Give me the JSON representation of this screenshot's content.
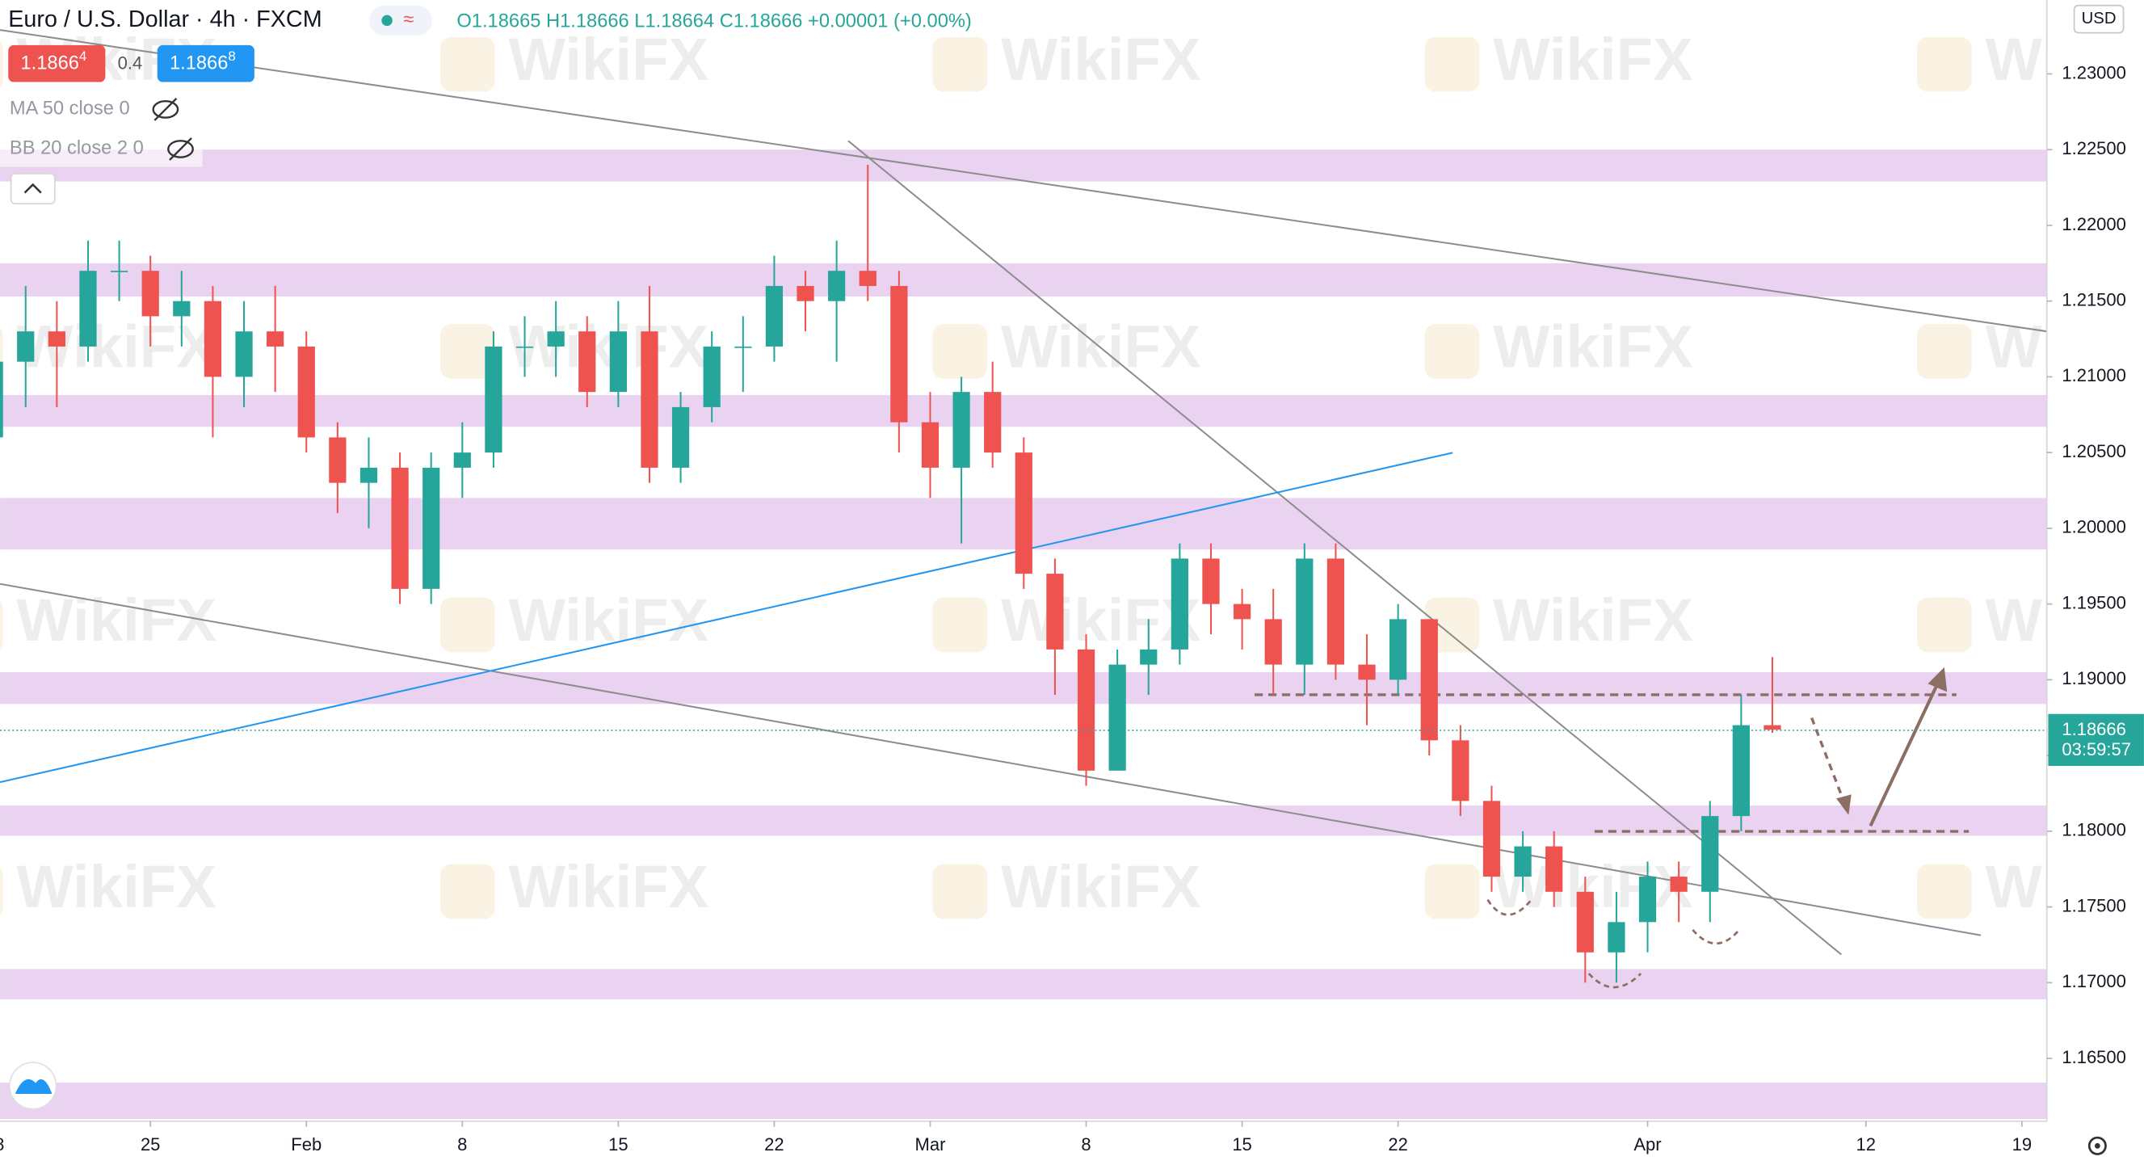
{
  "chart_data": {
    "type": "candlestick",
    "title": "Euro / U.S. Dollar · 4h · FXCM",
    "ohlc_text": "O1.18665 H1.18666 L1.18664 C1.18666 +0.00001 (+0.00%)",
    "bid_main": "1.1866",
    "bid_pip": "4",
    "spread": "0.4",
    "ask_main": "1.1866",
    "ask_pip": "8",
    "indicators": [
      "MA 50 close 0",
      "BB 20 close 2 0"
    ],
    "currency": "USD",
    "watermark": "WikiFX",
    "last_price": 1.18666,
    "countdown": "03:59:57",
    "up_color": "#26a69a",
    "down_color": "#ef5350",
    "zone_color": "#e6cbee",
    "xlim": [
      0.18,
      65.8
    ],
    "ylim": [
      1.16085,
      1.23488
    ],
    "xticks": [
      {
        "value": 0,
        "label": "18"
      },
      {
        "value": 5,
        "label": "25"
      },
      {
        "value": 10,
        "label": "Feb"
      },
      {
        "value": 15,
        "label": "8"
      },
      {
        "value": 20,
        "label": "15"
      },
      {
        "value": 25,
        "label": "22"
      },
      {
        "value": 30,
        "label": "Mar"
      },
      {
        "value": 35,
        "label": "8"
      },
      {
        "value": 40,
        "label": "15"
      },
      {
        "value": 45,
        "label": "22"
      },
      {
        "value": 53,
        "label": "Apr"
      },
      {
        "value": 60,
        "label": "12"
      },
      {
        "value": 65,
        "label": "19"
      }
    ],
    "yticks": [
      {
        "value": 1.23,
        "label": "1.23000"
      },
      {
        "value": 1.225,
        "label": "1.22500"
      },
      {
        "value": 1.22,
        "label": "1.22000"
      },
      {
        "value": 1.215,
        "label": "1.21500"
      },
      {
        "value": 1.21,
        "label": "1.21000"
      },
      {
        "value": 1.205,
        "label": "1.20500"
      },
      {
        "value": 1.2,
        "label": "1.20000"
      },
      {
        "value": 1.195,
        "label": "1.19500"
      },
      {
        "value": 1.19,
        "label": "1.19000"
      },
      {
        "value": 1.185,
        "label": "1.18500"
      },
      {
        "value": 1.18,
        "label": "1.18000"
      },
      {
        "value": 1.175,
        "label": "1.17500"
      },
      {
        "value": 1.17,
        "label": "1.17000"
      },
      {
        "value": 1.165,
        "label": "1.16500"
      }
    ],
    "candles": {
      "x": [
        0,
        1,
        2,
        3,
        4,
        5,
        6,
        7,
        8,
        9,
        10,
        11,
        12,
        13,
        14,
        15,
        16,
        17,
        18,
        19,
        20,
        21,
        22,
        23,
        24,
        25,
        26,
        27,
        28,
        29,
        30,
        31,
        32,
        33,
        34,
        35,
        36,
        37,
        38,
        39,
        40,
        41,
        42,
        43,
        44,
        45,
        46,
        47,
        48,
        49,
        50,
        51,
        52,
        53,
        54,
        55,
        56,
        57
      ],
      "open": [
        1.206,
        1.211,
        1.213,
        1.212,
        1.217,
        1.217,
        1.214,
        1.215,
        1.21,
        1.213,
        1.212,
        1.206,
        1.203,
        1.204,
        1.196,
        1.204,
        1.205,
        1.212,
        1.212,
        1.213,
        1.209,
        1.213,
        1.204,
        1.208,
        1.212,
        1.212,
        1.216,
        1.215,
        1.217,
        1.216,
        1.207,
        1.204,
        1.209,
        1.205,
        1.197,
        1.192,
        1.184,
        1.191,
        1.192,
        1.198,
        1.195,
        1.194,
        1.191,
        1.198,
        1.191,
        1.19,
        1.194,
        1.186,
        1.182,
        1.177,
        1.179,
        1.176,
        1.172,
        1.174,
        1.177,
        1.176,
        1.181,
        1.187
      ],
      "high": [
        1.213,
        1.216,
        1.215,
        1.219,
        1.219,
        1.218,
        1.217,
        1.216,
        1.215,
        1.216,
        1.213,
        1.207,
        1.206,
        1.205,
        1.205,
        1.207,
        1.213,
        1.214,
        1.215,
        1.214,
        1.215,
        1.216,
        1.209,
        1.213,
        1.214,
        1.218,
        1.217,
        1.219,
        1.224,
        1.217,
        1.209,
        1.21,
        1.211,
        1.206,
        1.198,
        1.193,
        1.192,
        1.194,
        1.199,
        1.199,
        1.196,
        1.196,
        1.199,
        1.199,
        1.193,
        1.195,
        1.194,
        1.187,
        1.183,
        1.18,
        1.18,
        1.177,
        1.176,
        1.178,
        1.178,
        1.182,
        1.189,
        1.1915
      ],
      "low": [
        1.205,
        1.208,
        1.208,
        1.211,
        1.215,
        1.212,
        1.212,
        1.206,
        1.208,
        1.209,
        1.205,
        1.201,
        1.2,
        1.195,
        1.195,
        1.202,
        1.204,
        1.21,
        1.21,
        1.208,
        1.208,
        1.203,
        1.203,
        1.207,
        1.209,
        1.211,
        1.213,
        1.211,
        1.215,
        1.205,
        1.202,
        1.199,
        1.204,
        1.196,
        1.189,
        1.183,
        1.184,
        1.189,
        1.191,
        1.193,
        1.192,
        1.189,
        1.189,
        1.19,
        1.187,
        1.189,
        1.185,
        1.181,
        1.176,
        1.176,
        1.175,
        1.17,
        1.17,
        1.172,
        1.174,
        1.174,
        1.18,
        1.1865
      ],
      "close": [
        1.211,
        1.213,
        1.212,
        1.217,
        1.217,
        1.214,
        1.215,
        1.21,
        1.213,
        1.212,
        1.206,
        1.203,
        1.204,
        1.196,
        1.204,
        1.205,
        1.212,
        1.212,
        1.213,
        1.209,
        1.213,
        1.204,
        1.208,
        1.212,
        1.212,
        1.216,
        1.215,
        1.217,
        1.216,
        1.207,
        1.204,
        1.209,
        1.205,
        1.197,
        1.192,
        1.184,
        1.191,
        1.192,
        1.198,
        1.195,
        1.194,
        1.191,
        1.198,
        1.191,
        1.19,
        1.194,
        1.186,
        1.182,
        1.177,
        1.179,
        1.176,
        1.172,
        1.174,
        1.177,
        1.176,
        1.181,
        1.187,
        1.1867
      ]
    },
    "zones": [
      [
        1.2229,
        1.225
      ],
      [
        1.2153,
        1.2175
      ],
      [
        1.2067,
        1.2088
      ],
      [
        1.1986,
        1.202
      ],
      [
        1.1884,
        1.1905
      ],
      [
        1.1797,
        1.1817
      ],
      [
        1.1689,
        1.1709
      ],
      [
        1.161,
        1.1634
      ]
    ],
    "trend_lines": [
      {
        "color": "#8d8d8d",
        "x": [
          0.18,
          65.8
        ],
        "y": [
          1.2329,
          1.213
        ]
      },
      {
        "color": "#8d8d8d",
        "x": [
          27.37,
          59.21
        ],
        "y": [
          1.22558,
          1.17186
        ]
      },
      {
        "color": "#8d8d8d",
        "x": [
          0.18,
          63.68
        ],
        "y": [
          1.19633,
          1.17313
        ]
      },
      {
        "color": "#2196f3",
        "x": [
          0.18,
          46.75
        ],
        "y": [
          1.18324,
          1.20499
        ]
      }
    ],
    "levels": [
      {
        "color": "#8d6e63",
        "x": [
          40.4,
          62.9
        ],
        "y": 1.18901
      },
      {
        "color": "#8d6e63",
        "x": [
          51.3,
          63.3
        ],
        "y": 1.17999
      }
    ]
  }
}
